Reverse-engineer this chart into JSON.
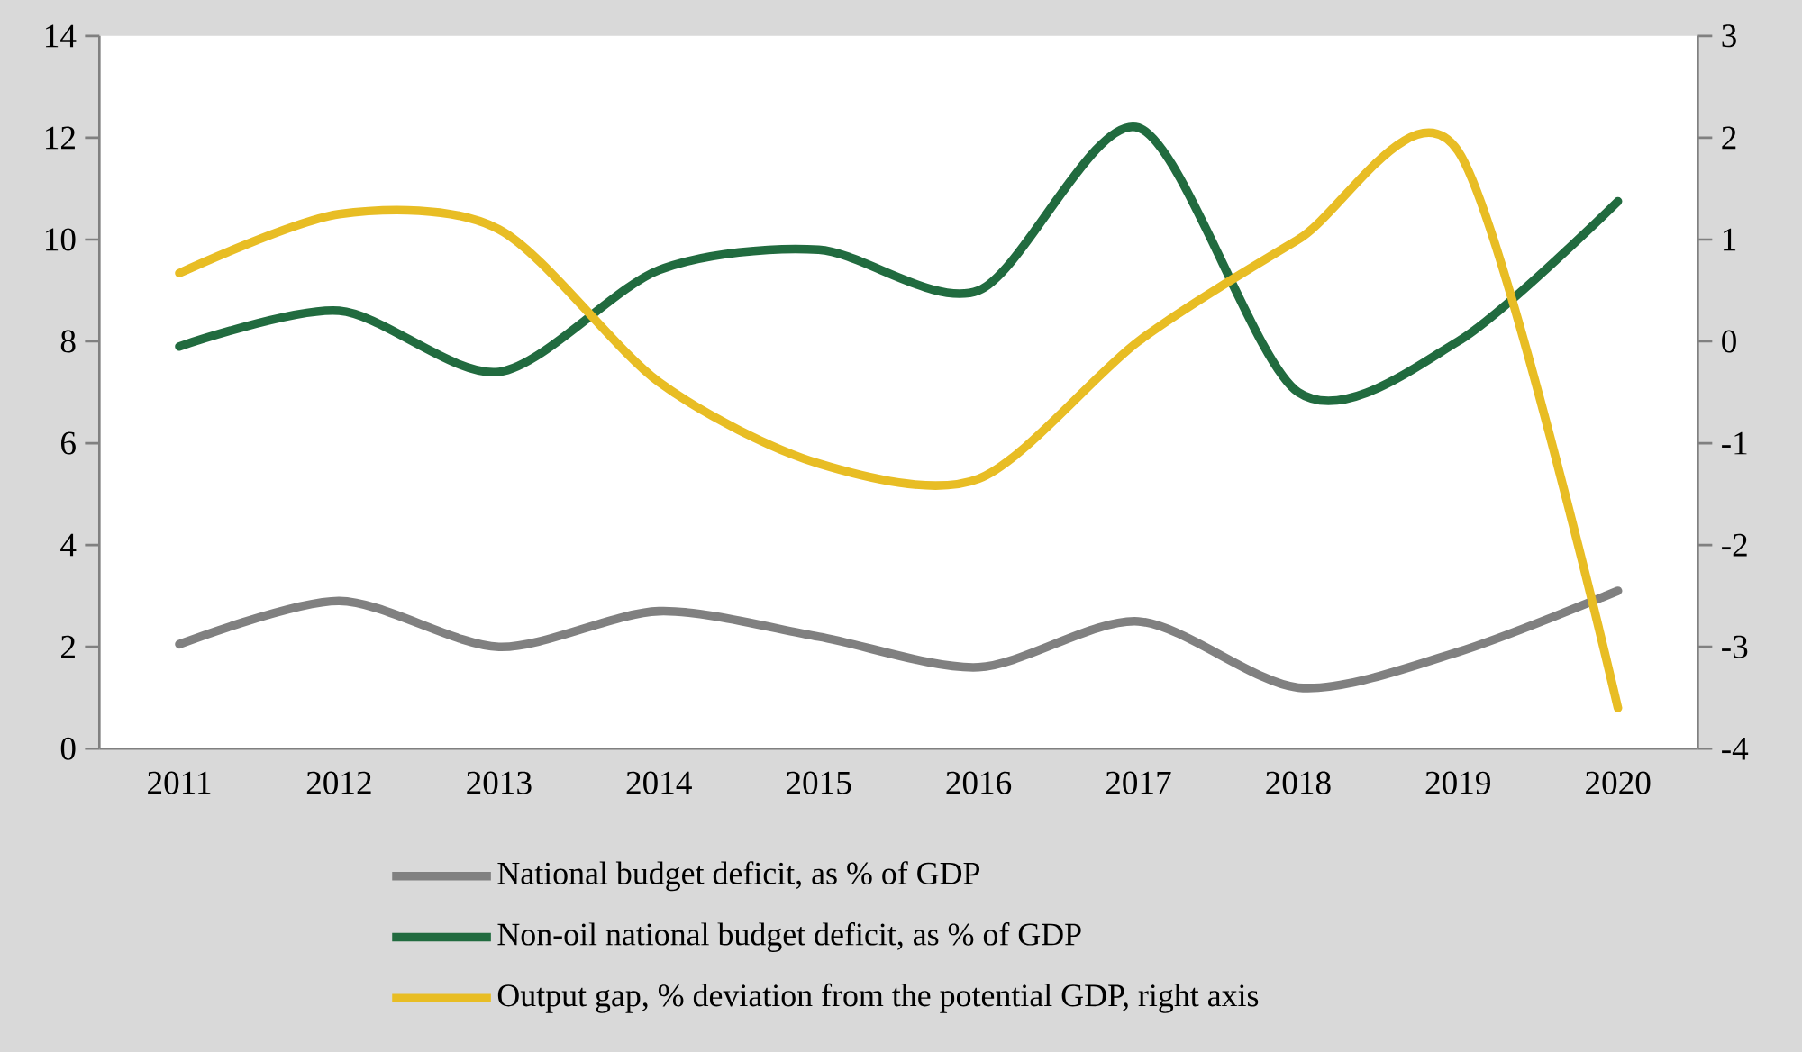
{
  "chart_data": {
    "type": "line",
    "categories": [
      "2011",
      "2012",
      "2013",
      "2014",
      "2015",
      "2016",
      "2017",
      "2018",
      "2019",
      "2020"
    ],
    "series": [
      {
        "name": "National budget deficit, as % of GDP",
        "color": "#808080",
        "values": [
          2.05,
          2.9,
          2.0,
          2.7,
          2.2,
          1.6,
          2.5,
          1.2,
          1.9,
          3.1
        ]
      },
      {
        "name": "Non-oil national budget deficit, as % of GDP",
        "color": "#216b3f",
        "values": [
          7.9,
          8.6,
          7.4,
          9.4,
          9.8,
          9.0,
          12.2,
          7.0,
          8.0,
          10.75
        ]
      },
      {
        "name": "Output gap, % deviation from the potential GDP, right axis",
        "color": "#e8bd24",
        "axis": "y2",
        "values": [
          0.67,
          1.25,
          1.1,
          -0.4,
          -1.2,
          -1.35,
          0.0,
          1.0,
          1.87,
          -3.6
        ]
      }
    ],
    "ylim": [
      0,
      14
    ],
    "yticks": [
      0,
      2,
      4,
      6,
      8,
      10,
      12,
      14
    ],
    "y2lim": [
      -4,
      3
    ],
    "y2ticks": [
      3,
      2,
      1,
      0,
      -1,
      -2,
      -3,
      -4
    ],
    "legend": "bottom",
    "marker": "none",
    "line_style": "solid"
  }
}
